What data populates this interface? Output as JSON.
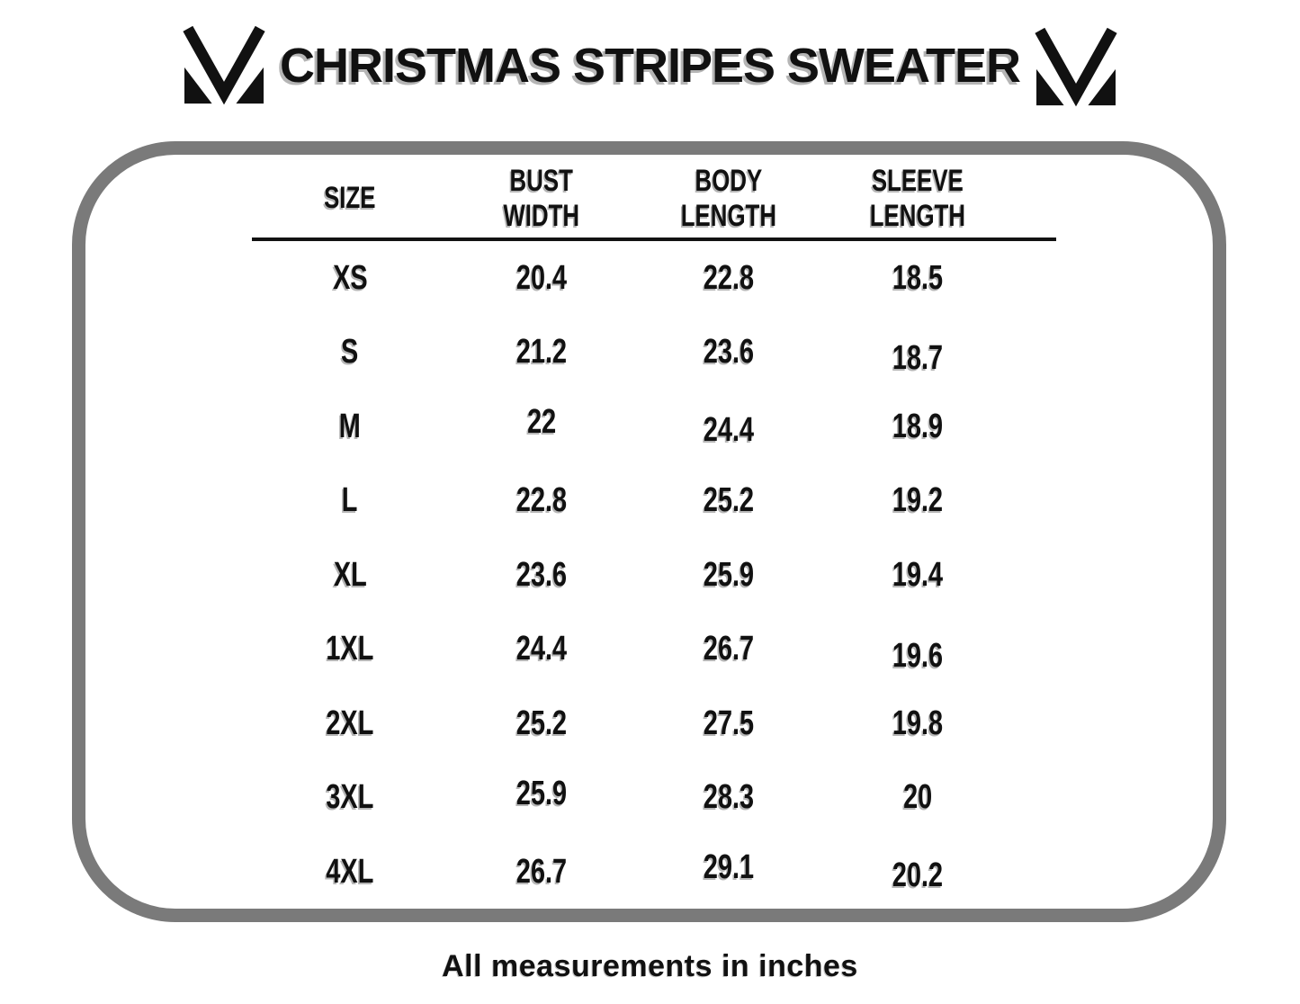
{
  "title": "CHRISTMAS STRIPES SWEATER",
  "brand": {
    "logo_icon": "m-checkmark-monogram"
  },
  "footnote": "All measurements in inches",
  "colors": {
    "text": "#111111",
    "border_gray": "#7a7a7a",
    "shadow_gray": "#b5b5b5",
    "divider": "#121212",
    "background": "#ffffff"
  },
  "chart_data": {
    "type": "table",
    "title": "CHRISTMAS STRIPES SWEATER",
    "units": "inches",
    "columns": [
      "SIZE",
      "BUST WIDTH",
      "BODY LENGTH",
      "SLEEVE LENGTH"
    ],
    "column_lines": [
      [
        "SIZE"
      ],
      [
        "BUST",
        "WIDTH"
      ],
      [
        "BODY",
        "LENGTH"
      ],
      [
        "SLEEVE",
        "LENGTH"
      ]
    ],
    "rows": [
      [
        "XS",
        20.4,
        22.8,
        18.5
      ],
      [
        "S",
        21.2,
        23.6,
        18.7
      ],
      [
        "M",
        22,
        24.4,
        18.9
      ],
      [
        "L",
        22.8,
        25.2,
        19.2
      ],
      [
        "XL",
        23.6,
        25.9,
        19.4
      ],
      [
        "1XL",
        24.4,
        26.7,
        19.6
      ],
      [
        "2XL",
        25.2,
        27.5,
        19.8
      ],
      [
        "3XL",
        25.9,
        28.3,
        20
      ],
      [
        "4XL",
        26.7,
        29.1,
        20.2
      ]
    ]
  }
}
